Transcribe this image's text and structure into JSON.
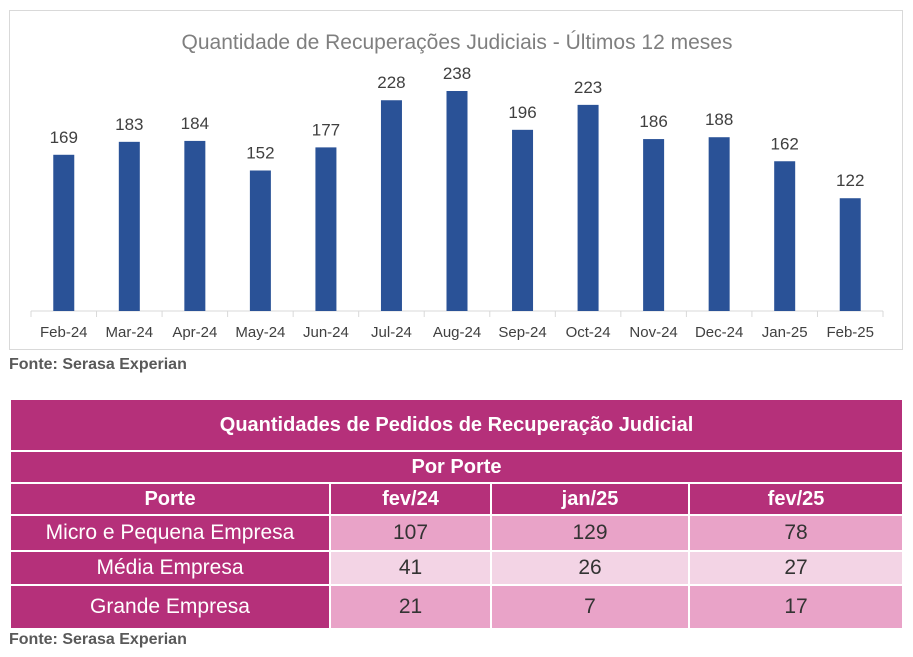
{
  "chart_data": {
    "type": "bar",
    "title": "Quantidade de Recuperações Judiciais - Últimos 12 meses",
    "categories": [
      "Feb-24",
      "Mar-24",
      "Apr-24",
      "May-24",
      "Jun-24",
      "Jul-24",
      "Aug-24",
      "Sep-24",
      "Oct-24",
      "Nov-24",
      "Dec-24",
      "Jan-25",
      "Feb-25"
    ],
    "values": [
      169,
      183,
      184,
      152,
      177,
      228,
      238,
      196,
      223,
      186,
      188,
      162,
      122
    ],
    "xlabel": "",
    "ylabel": "",
    "ylim": [
      0,
      238
    ],
    "grid": false,
    "legend": "none",
    "bar_color": "#2a5297"
  },
  "chart_source": "Fonte: Serasa Experian",
  "table": {
    "title": "Quantidades de Pedidos de Recuperação Judicial",
    "subtitle": "Por Porte",
    "columns": [
      "Porte",
      "fev/24",
      "jan/25",
      "fev/25"
    ],
    "rows": [
      {
        "label": "Micro e Pequena Empresa",
        "values": [
          "107",
          "129",
          "78"
        ]
      },
      {
        "label": "Média Empresa",
        "values": [
          "41",
          "26",
          "27"
        ]
      },
      {
        "label": "Grande Empresa",
        "values": [
          "21",
          "7",
          "17"
        ]
      }
    ],
    "header_color": "#b5307a",
    "row_color": "#e9a3c8",
    "row_alt_color": "#f3d4e5"
  },
  "table_source": "Fonte: Serasa Experian"
}
